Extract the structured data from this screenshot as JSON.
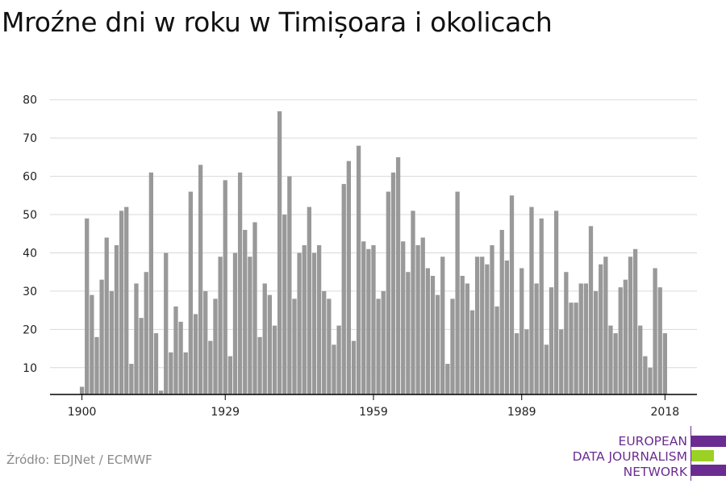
{
  "title": "Mroźne dni w roku w Timișoara i okolicach",
  "source": "Źródło: EDJNet / ECMWF",
  "logo": {
    "lines": [
      "EUROPEAN",
      "DATA JOURNALISM",
      "NETWORK"
    ],
    "colors": {
      "purple": "#6b2c91",
      "green": "#9bd024"
    }
  },
  "colors": {
    "bar": "#999999",
    "grid": "#d9d9d9",
    "axis": "#000000"
  },
  "chart_data": {
    "type": "bar",
    "title": "Mroźne dni w roku w Timișoara i okolicach",
    "xlabel": "",
    "ylabel": "",
    "ylim": [
      3,
      83
    ],
    "yticks": [
      10,
      20,
      30,
      40,
      50,
      60,
      70,
      80
    ],
    "xticks": [
      1900,
      1929,
      1959,
      1989,
      2018
    ],
    "grid": true,
    "x": [
      1900,
      1901,
      1902,
      1903,
      1904,
      1905,
      1906,
      1907,
      1908,
      1909,
      1910,
      1911,
      1912,
      1913,
      1914,
      1915,
      1916,
      1917,
      1918,
      1919,
      1920,
      1921,
      1922,
      1923,
      1924,
      1925,
      1926,
      1927,
      1928,
      1929,
      1930,
      1931,
      1932,
      1933,
      1934,
      1935,
      1936,
      1937,
      1938,
      1939,
      1940,
      1941,
      1942,
      1943,
      1944,
      1945,
      1946,
      1947,
      1948,
      1949,
      1950,
      1951,
      1952,
      1953,
      1954,
      1955,
      1956,
      1957,
      1958,
      1959,
      1960,
      1961,
      1962,
      1963,
      1964,
      1965,
      1966,
      1967,
      1968,
      1969,
      1970,
      1971,
      1972,
      1973,
      1974,
      1975,
      1976,
      1977,
      1978,
      1979,
      1980,
      1981,
      1982,
      1983,
      1984,
      1985,
      1986,
      1987,
      1988,
      1989,
      1990,
      1991,
      1992,
      1993,
      1994,
      1995,
      1996,
      1997,
      1998,
      1999,
      2000,
      2001,
      2002,
      2003,
      2004,
      2005,
      2006,
      2007,
      2008,
      2009,
      2010,
      2011,
      2012,
      2013,
      2014,
      2015,
      2016,
      2017,
      2018
    ],
    "values": [
      5,
      49,
      29,
      18,
      33,
      44,
      30,
      42,
      51,
      52,
      11,
      32,
      23,
      35,
      61,
      19,
      4,
      40,
      14,
      26,
      22,
      14,
      56,
      24,
      63,
      30,
      17,
      28,
      39,
      59,
      13,
      40,
      61,
      46,
      39,
      48,
      18,
      32,
      29,
      21,
      77,
      50,
      60,
      28,
      40,
      42,
      52,
      40,
      42,
      30,
      28,
      16,
      21,
      58,
      64,
      17,
      68,
      43,
      41,
      42,
      28,
      30,
      56,
      61,
      65,
      43,
      35,
      51,
      42,
      44,
      36,
      34,
      29,
      39,
      11,
      28,
      56,
      34,
      32,
      25,
      39,
      39,
      37,
      42,
      26,
      46,
      38,
      55,
      19,
      36,
      20,
      52,
      32,
      49,
      16,
      31,
      51,
      20,
      35,
      27,
      27,
      32,
      32,
      47,
      30,
      37,
      39,
      21,
      19,
      31,
      33,
      39,
      41,
      21,
      13,
      10,
      36,
      31,
      19
    ]
  }
}
